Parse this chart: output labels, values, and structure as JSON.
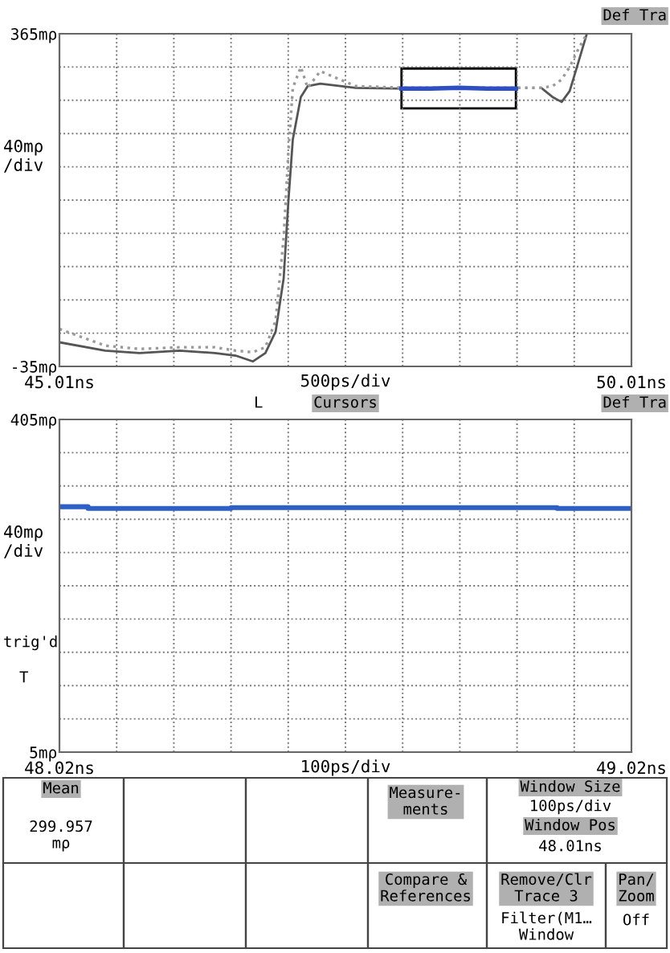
{
  "chart_data": [
    {
      "type": "line",
      "x": [
        45.01,
        45.41,
        45.71,
        46.06,
        46.37,
        46.55,
        46.7,
        46.81,
        46.9,
        46.97,
        47.01,
        47.05,
        47.12,
        47.18,
        47.29,
        47.6,
        48.04,
        48.48,
        48.92,
        49.23,
        49.32,
        49.4,
        49.47,
        49.54,
        49.62
      ],
      "series": [
        {
          "color": "#555555",
          "values": [
            -6,
            -16,
            -19,
            -16,
            -19,
            -22,
            -29,
            -19,
            7,
            71,
            161,
            238,
            289,
            302,
            305,
            300,
            299,
            300,
            null,
            299,
            289,
            283,
            296,
            328,
            365
          ]
        },
        {
          "color": "#999999",
          "line_style": "dotted",
          "values": [
            10,
            -10,
            -14,
            -12,
            -12,
            -16,
            -18,
            -12,
            20,
            120,
            220,
            300,
            325,
            300,
            320,
            302,
            300,
            300,
            300,
            300,
            302,
            310,
            325,
            345,
            365
          ]
        },
        {
          "color": "#2e4fc4",
          "x": [
            48.0,
            48.25,
            48.5,
            48.75,
            49.0
          ],
          "values": [
            299,
            299,
            300,
            299,
            299
          ]
        }
      ],
      "xlim": [
        45.01,
        50.01
      ],
      "ylim": [
        -35,
        365
      ],
      "xticks": [
        {
          "value": 45.01,
          "label": "45.01ns"
        },
        {
          "value": 45.51,
          "label": null
        },
        {
          "value": 46.01,
          "label": null
        },
        {
          "value": 46.51,
          "label": null
        },
        {
          "value": 47.01,
          "label": null
        },
        {
          "value": 47.51,
          "label": null
        },
        {
          "value": 48.01,
          "label": null
        },
        {
          "value": 48.51,
          "label": null
        },
        {
          "value": 49.01,
          "label": null
        },
        {
          "value": 49.51,
          "label": null
        },
        {
          "value": 50.01,
          "label": "50.01ns"
        }
      ],
      "yticks": [
        {
          "value": -35,
          "label": "-35mρ"
        },
        {
          "value": 5,
          "label": null
        },
        {
          "value": 45,
          "label": null
        },
        {
          "value": 85,
          "label": null
        },
        {
          "value": 125,
          "label": null
        },
        {
          "value": 165,
          "label": null
        },
        {
          "value": 205,
          "label": null
        },
        {
          "value": 245,
          "label": null
        },
        {
          "value": 285,
          "label": null
        },
        {
          "value": 325,
          "label": null
        },
        {
          "value": 365,
          "label": "365mρ"
        }
      ],
      "grid": true,
      "ylabel": "40mρ\n/div",
      "xlabel": "500ps/div",
      "annotations": [
        "Def Tra"
      ]
    },
    {
      "type": "step",
      "x": [
        48.02,
        48.07,
        48.32,
        48.89,
        49.02
      ],
      "series": [
        {
          "color": "#2e5fc4",
          "values": [
            300,
            298,
            299,
            298,
            298
          ]
        }
      ],
      "xlim": [
        48.02,
        49.02
      ],
      "ylim": [
        5,
        405
      ],
      "xticks": [
        {
          "value": 48.02,
          "label": "48.02ns"
        },
        {
          "value": 48.12,
          "label": null
        },
        {
          "value": 48.22,
          "label": null
        },
        {
          "value": 48.32,
          "label": null
        },
        {
          "value": 48.42,
          "label": null
        },
        {
          "value": 48.52,
          "label": null
        },
        {
          "value": 48.62,
          "label": null
        },
        {
          "value": 48.72,
          "label": null
        },
        {
          "value": 48.82,
          "label": null
        },
        {
          "value": 48.92,
          "label": null
        },
        {
          "value": 49.02,
          "label": "49.02ns"
        }
      ],
      "yticks": [
        {
          "value": 5,
          "label": "5mρ"
        },
        {
          "value": 45,
          "label": null
        },
        {
          "value": 85,
          "label": null
        },
        {
          "value": 125,
          "label": null
        },
        {
          "value": 165,
          "label": null
        },
        {
          "value": 205,
          "label": null
        },
        {
          "value": 245,
          "label": null
        },
        {
          "value": 285,
          "label": null
        },
        {
          "value": 325,
          "label": null
        },
        {
          "value": 365,
          "label": null
        },
        {
          "value": 405,
          "label": "405mρ"
        }
      ],
      "grid": true,
      "ylabel": "40mρ\n/div",
      "xlabel": "100ps/div",
      "annotations": [
        "Cursors",
        "L",
        "Def Tra",
        "trig'd",
        "T",
        "Mean",
        "299.957\nmρ",
        "Measure-\nments",
        "Window Size",
        "100ps/div",
        "Window Pos",
        "48.01ns",
        "Compare &\nReferences",
        "Remove/Clr\nTrace 3",
        "Pan/\nZoom",
        "Filter(M1…\nWindow",
        "Off"
      ]
    }
  ]
}
